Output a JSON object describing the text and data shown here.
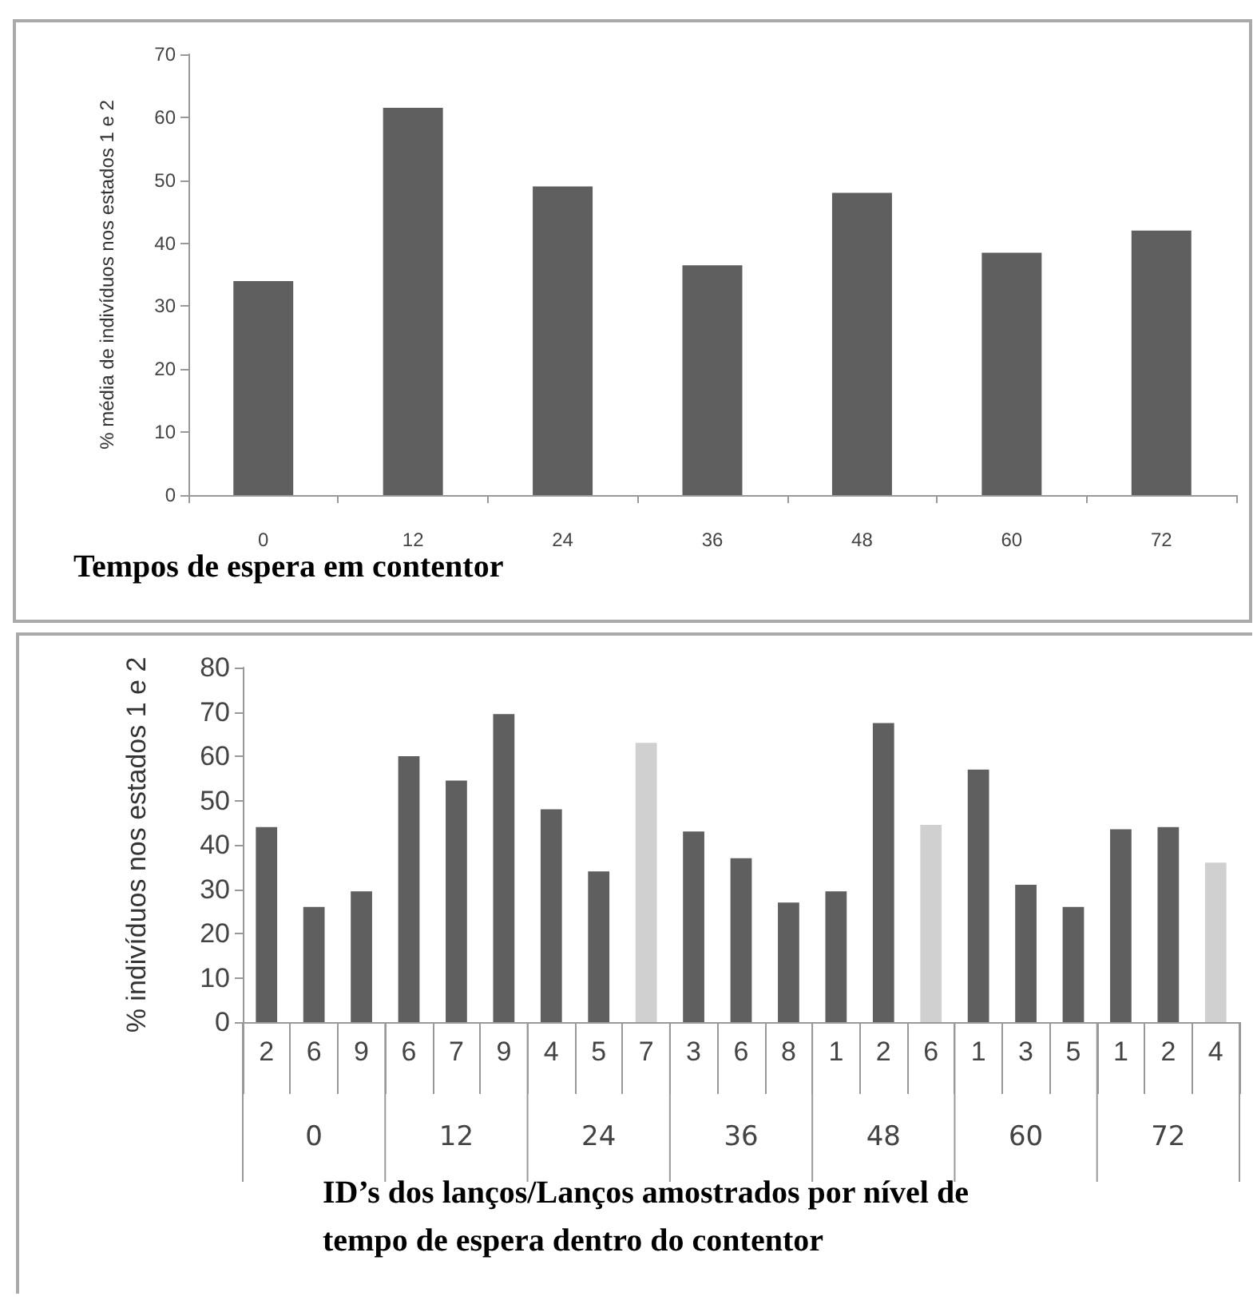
{
  "chart_data": [
    {
      "type": "bar",
      "xlabel": "Tempos de espera em contentor",
      "ylabel": "% média de indivíduos nos estados 1 e 2",
      "categories": [
        "0",
        "12",
        "24",
        "36",
        "48",
        "60",
        "72"
      ],
      "values": [
        34,
        61.5,
        49,
        36.5,
        48,
        38.5,
        42
      ],
      "color": "#5f5f5f",
      "ylim": [
        0,
        70
      ],
      "yticks": [
        0,
        10,
        20,
        30,
        40,
        50,
        60,
        70
      ],
      "grid": false
    },
    {
      "type": "bar",
      "xlabel": "ID’s dos lanços/Lanços amostrados por nível de tempo de espera dentro do contentor",
      "ylabel": "% indivíduos nos estados 1 e 2",
      "categories": [
        "2",
        "6",
        "9",
        "6",
        "7",
        "9",
        "4",
        "5",
        "7",
        "3",
        "6",
        "8",
        "1",
        "2",
        "6",
        "1",
        "3",
        "5",
        "1",
        "2",
        "4"
      ],
      "values": [
        44,
        26,
        29.5,
        60,
        54.5,
        69.5,
        48,
        34,
        63,
        43,
        37,
        27,
        29.5,
        67.5,
        44.5,
        57,
        31,
        26,
        43.5,
        44,
        36
      ],
      "colors": [
        "#5f5f5f",
        "#5f5f5f",
        "#5f5f5f",
        "#5f5f5f",
        "#5f5f5f",
        "#5f5f5f",
        "#5f5f5f",
        "#5f5f5f",
        "#d0d0d0",
        "#5f5f5f",
        "#5f5f5f",
        "#5f5f5f",
        "#5f5f5f",
        "#5f5f5f",
        "#d0d0d0",
        "#5f5f5f",
        "#5f5f5f",
        "#5f5f5f",
        "#5f5f5f",
        "#5f5f5f",
        "#d0d0d0"
      ],
      "ylim": [
        0,
        80
      ],
      "yticks": [
        0,
        10,
        20,
        30,
        40,
        50,
        60,
        70,
        80
      ],
      "grid": false,
      "annotations": [
        "0",
        "12",
        "24",
        "36",
        "48",
        "60",
        "72"
      ]
    }
  ]
}
